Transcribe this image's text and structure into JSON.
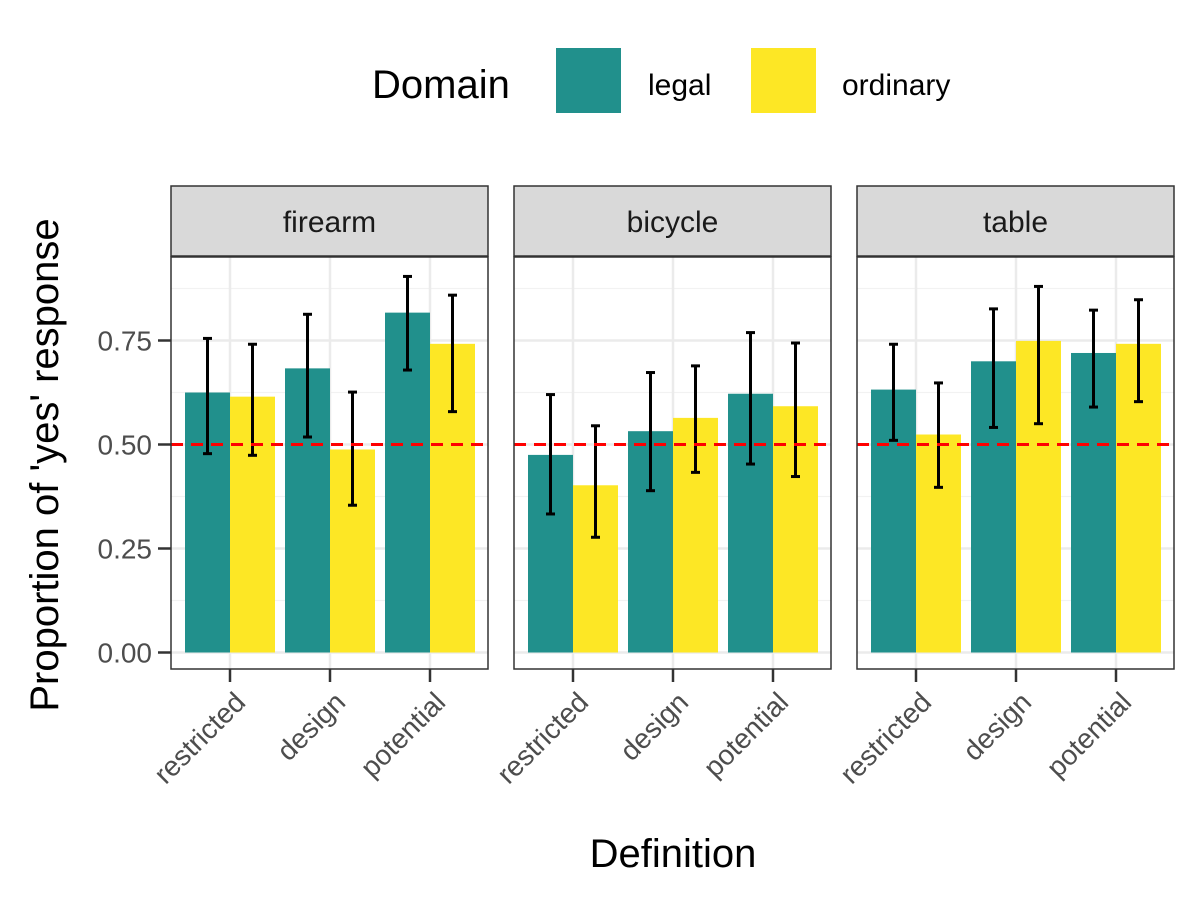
{
  "chart_data": {
    "type": "bar",
    "facets": [
      "firearm",
      "bicycle",
      "table"
    ],
    "categories": [
      "restricted",
      "design",
      "potential"
    ],
    "series": [
      {
        "name": "legal",
        "color": "#21908C",
        "values": {
          "firearm": [
            0.625,
            0.683,
            0.817
          ],
          "bicycle": [
            0.475,
            0.532,
            0.622
          ],
          "table": [
            0.632,
            0.7,
            0.72
          ]
        },
        "ci_low": {
          "firearm": [
            0.478,
            0.518,
            0.679
          ],
          "bicycle": [
            0.333,
            0.389,
            0.453
          ],
          "table": [
            0.51,
            0.541,
            0.59
          ]
        },
        "ci_high": {
          "firearm": [
            0.755,
            0.813,
            0.904
          ],
          "bicycle": [
            0.62,
            0.673,
            0.769
          ],
          "table": [
            0.741,
            0.826,
            0.823
          ]
        }
      },
      {
        "name": "ordinary",
        "color": "#FDE725",
        "values": {
          "firearm": [
            0.615,
            0.488,
            0.742
          ],
          "bicycle": [
            0.402,
            0.564,
            0.592
          ],
          "table": [
            0.524,
            0.749,
            0.742
          ]
        },
        "ci_low": {
          "firearm": [
            0.474,
            0.354,
            0.579
          ],
          "bicycle": [
            0.277,
            0.433,
            0.423
          ],
          "table": [
            0.397,
            0.55,
            0.603
          ]
        },
        "ci_high": {
          "firearm": [
            0.741,
            0.626,
            0.859
          ],
          "bicycle": [
            0.545,
            0.689,
            0.744
          ],
          "table": [
            0.648,
            0.88,
            0.848
          ]
        }
      }
    ],
    "reference_line": {
      "y": 0.5,
      "color": "#FF0000",
      "style": "dashed"
    },
    "xlabel": "Definition",
    "ylabel": "Proportion of 'yes' response",
    "yticks": [
      "0.00",
      "0.25",
      "0.50",
      "0.75"
    ],
    "ylim": [
      -0.04,
      0.945
    ],
    "legend": {
      "title": "Domain",
      "position": "top",
      "entries": [
        "legal",
        "ordinary"
      ]
    },
    "grid": true
  }
}
